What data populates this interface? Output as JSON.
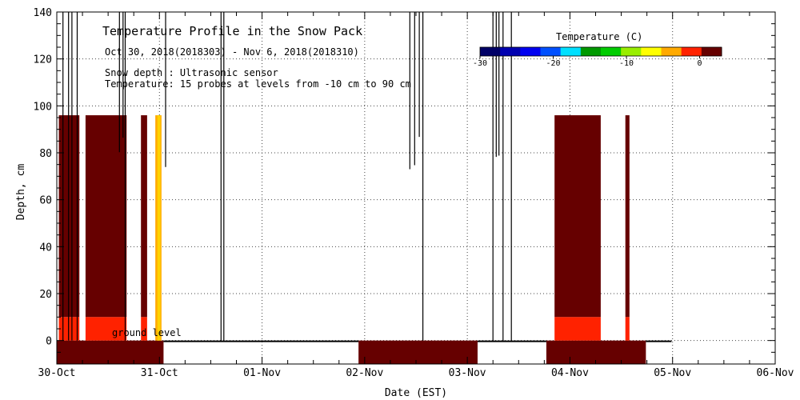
{
  "chart_data": {
    "type": "heatmap",
    "title": "Temperature Profile in the Snow Pack",
    "subtitle": "Oct 30, 2018(2018303) - Nov  6, 2018(2018310)",
    "notes": [
      "Snow depth : Ultrasonic sensor",
      "Temperature: 15 probes at levels from -10 cm to 90 cm"
    ],
    "xlabel": "Date (EST)",
    "ylabel": "Depth, cm",
    "x_ticks": [
      "30-Oct",
      "31-Oct",
      "01-Nov",
      "02-Nov",
      "03-Nov",
      "04-Nov",
      "05-Nov",
      "06-Nov"
    ],
    "x_range_days": [
      0,
      7
    ],
    "y_ticks": [
      "0",
      "20",
      "40",
      "60",
      "80",
      "100",
      "120",
      "140"
    ],
    "ylim": [
      -10,
      140
    ],
    "ground_level_label": "ground level",
    "grid": true,
    "colorbar": {
      "title": "Temperature (C)",
      "ticks": [
        "-30",
        "-20",
        "-10",
        "0"
      ],
      "range": [
        -30,
        3
      ],
      "colors": [
        "#000066",
        "#0000b0",
        "#0000f0",
        "#0050ff",
        "#00e0ff",
        "#009900",
        "#00cc00",
        "#99ee00",
        "#ffff00",
        "#ffaa00",
        "#ff2200",
        "#660000"
      ],
      "placement": "top-right"
    },
    "snow_depth_segments": [
      [
        0.06,
        0.27
      ],
      [
        0.61,
        0.67
      ],
      [
        1.06,
        1.08
      ],
      [
        1.6,
        1.69
      ],
      [
        3.44,
        3.62
      ],
      [
        4.25,
        4.5
      ]
    ],
    "temperature_blocks": [
      {
        "t0": 0.02,
        "t1": 0.22,
        "d0": 10,
        "d1": 96,
        "c": "#660000"
      },
      {
        "t0": 0.02,
        "t1": 0.22,
        "d0": 0,
        "d1": 10,
        "c": "#ff2200"
      },
      {
        "t0": 0.28,
        "t1": 0.68,
        "d0": 10,
        "d1": 96,
        "c": "#660000"
      },
      {
        "t0": 0.28,
        "t1": 0.68,
        "d0": 0,
        "d1": 10,
        "c": "#ff2200"
      },
      {
        "t0": 0.82,
        "t1": 0.88,
        "d0": 10,
        "d1": 96,
        "c": "#660000"
      },
      {
        "t0": 0.82,
        "t1": 0.88,
        "d0": 0,
        "d1": 10,
        "c": "#ff2200"
      },
      {
        "t0": 0.96,
        "t1": 1.02,
        "d0": 0,
        "d1": 96,
        "c": "#ffaa00"
      },
      {
        "t0": 0.98,
        "t1": 1.01,
        "d0": 0,
        "d1": 96,
        "c": "#ffd200"
      },
      {
        "t0": 4.85,
        "t1": 5.3,
        "d0": 10,
        "d1": 96,
        "c": "#660000"
      },
      {
        "t0": 4.85,
        "t1": 5.3,
        "d0": 0,
        "d1": 10,
        "c": "#ff2200"
      },
      {
        "t0": 5.54,
        "t1": 5.58,
        "d0": 10,
        "d1": 96,
        "c": "#660000"
      },
      {
        "t0": 5.54,
        "t1": 5.58,
        "d0": 0,
        "d1": 10,
        "c": "#ff2200"
      }
    ],
    "ground_blocks": [
      {
        "t0": 0.0,
        "t1": 1.04,
        "c": "#660000"
      },
      {
        "t0": 2.94,
        "t1": 4.1,
        "c": "#660000"
      },
      {
        "t0": 4.77,
        "t1": 5.74,
        "c": "#660000"
      }
    ],
    "no_data_line": [
      [
        1.04,
        2.94
      ],
      [
        4.1,
        4.77
      ],
      [
        5.74,
        5.99
      ]
    ]
  }
}
